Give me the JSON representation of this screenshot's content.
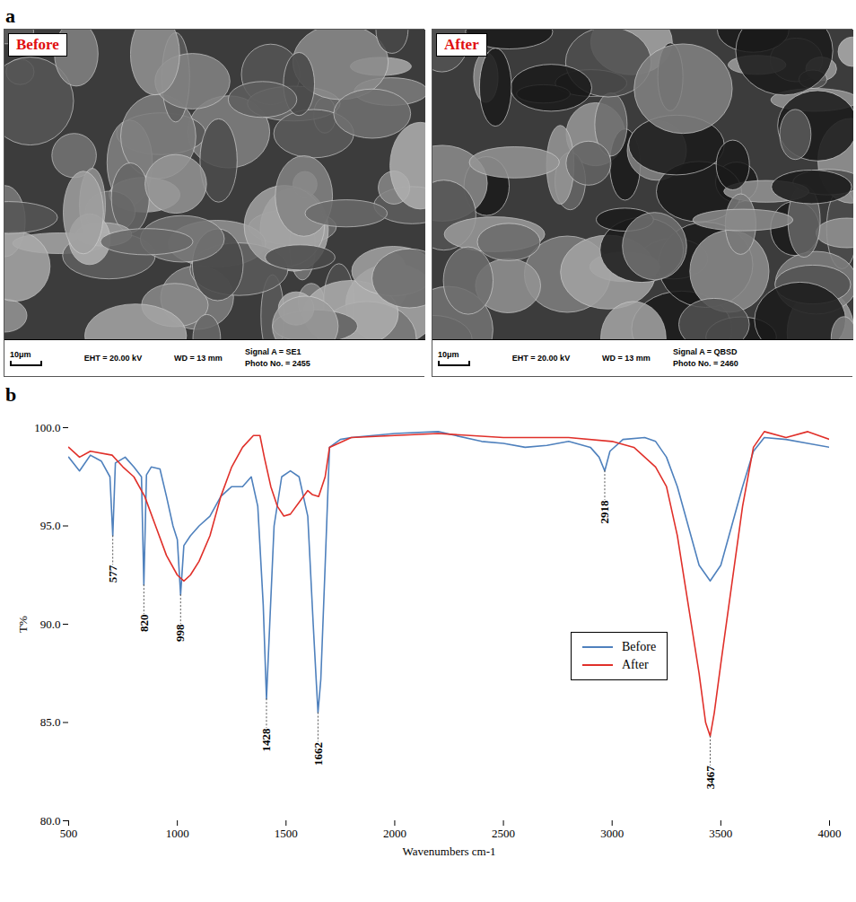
{
  "images": {
    "letter": "a",
    "panels": [
      {
        "tag": "Before",
        "scale_bar": "10μm",
        "info": [
          "EHT = 20.00 kV",
          "WD =  13 mm",
          "Signal A = SE1",
          "Photo No. = 2455"
        ]
      },
      {
        "tag": "After",
        "scale_bar": "10μm",
        "info": [
          "EHT = 20.00 kV",
          "WD =  13 mm",
          "Signal A = QBSD",
          "Photo No. = 2460"
        ]
      }
    ]
  },
  "chart_data": {
    "letter": "b",
    "type": "line",
    "x_label": "Wavenumbers cm-1",
    "y_label": "T%",
    "xlim": [
      500,
      4000
    ],
    "xticks": [
      500,
      1000,
      1500,
      2000,
      2500,
      3000,
      3500,
      4000
    ],
    "ylim": [
      80,
      100
    ],
    "yticks": [
      {
        "value": 80,
        "label": "80.0"
      },
      {
        "value": 85,
        "label": "85.0"
      },
      {
        "value": 90,
        "label": "90.0"
      },
      {
        "value": 95,
        "label": "95.0"
      },
      {
        "value": 100,
        "label": "100.0"
      }
    ],
    "legend": "right",
    "series": [
      {
        "name": "Before",
        "color": "#4f81bd",
        "x": [
          500,
          550,
          600,
          650,
          690,
          703,
          715,
          760,
          800,
          835,
          846,
          858,
          880,
          920,
          950,
          980,
          1000,
          1015,
          1030,
          1060,
          1100,
          1150,
          1200,
          1250,
          1300,
          1340,
          1370,
          1395,
          1410,
          1425,
          1445,
          1480,
          1520,
          1560,
          1600,
          1625,
          1640,
          1647,
          1660,
          1680,
          1700,
          1750,
          1800,
          2000,
          2200,
          2400,
          2500,
          2600,
          2700,
          2800,
          2900,
          2940,
          2966,
          2990,
          3050,
          3150,
          3200,
          3250,
          3300,
          3350,
          3400,
          3451,
          3500,
          3550,
          3600,
          3650,
          3700,
          3800,
          3900,
          4000
        ],
        "values": [
          98.5,
          97.8,
          98.6,
          98.3,
          97.5,
          94.5,
          98.2,
          98.5,
          98.0,
          97.5,
          92.0,
          97.6,
          98.0,
          97.9,
          96.5,
          95.0,
          94.3,
          91.5,
          94.0,
          94.5,
          95.0,
          95.5,
          96.5,
          97.0,
          97.0,
          97.5,
          96.0,
          91.0,
          86.2,
          90.0,
          95.0,
          97.5,
          97.8,
          97.5,
          95.5,
          90.0,
          86.9,
          85.5,
          87.2,
          93.0,
          99.0,
          99.4,
          99.5,
          99.7,
          99.8,
          99.3,
          99.2,
          99.0,
          99.1,
          99.3,
          99.0,
          98.5,
          97.8,
          98.8,
          99.4,
          99.5,
          99.3,
          98.5,
          97.0,
          95.0,
          93.0,
          92.2,
          93.0,
          95.0,
          97.0,
          98.8,
          99.5,
          99.4,
          99.2,
          99.0
        ]
      },
      {
        "name": "After",
        "color": "#e0302a",
        "x": [
          500,
          550,
          600,
          700,
          750,
          800,
          850,
          900,
          950,
          1000,
          1030,
          1060,
          1100,
          1150,
          1200,
          1250,
          1300,
          1350,
          1380,
          1400,
          1430,
          1460,
          1490,
          1520,
          1560,
          1600,
          1620,
          1650,
          1680,
          1700,
          1800,
          2000,
          2200,
          2500,
          2800,
          3000,
          3100,
          3200,
          3250,
          3300,
          3350,
          3400,
          3430,
          3451,
          3470,
          3500,
          3550,
          3600,
          3650,
          3700,
          3800,
          3900,
          4000
        ],
        "values": [
          99.0,
          98.5,
          98.8,
          98.6,
          98.0,
          97.5,
          96.5,
          95.0,
          93.5,
          92.5,
          92.2,
          92.5,
          93.2,
          94.5,
          96.5,
          98.0,
          99.0,
          99.6,
          99.6,
          98.5,
          97.0,
          96.0,
          95.5,
          95.6,
          96.2,
          96.8,
          96.6,
          96.5,
          97.5,
          99.0,
          99.5,
          99.6,
          99.7,
          99.5,
          99.5,
          99.3,
          99.0,
          98.0,
          97.0,
          94.5,
          91.0,
          87.5,
          85.0,
          84.3,
          85.5,
          88.0,
          92.0,
          96.0,
          99.0,
          99.8,
          99.5,
          99.8,
          99.4
        ]
      }
    ],
    "annotations": [
      {
        "text": "577",
        "x": 703
      },
      {
        "text": "820",
        "x": 846
      },
      {
        "text": "998",
        "x": 1015
      },
      {
        "text": "1428",
        "x": 1410
      },
      {
        "text": "1662",
        "x": 1647
      },
      {
        "text": "2918",
        "x": 2966
      },
      {
        "text": "3467",
        "x": 3451
      }
    ]
  }
}
